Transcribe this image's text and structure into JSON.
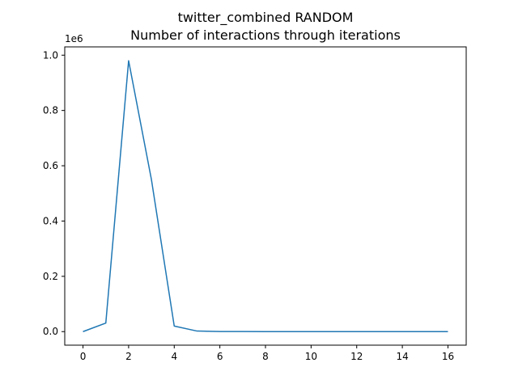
{
  "chart_data": {
    "type": "line",
    "title": "twitter_combined RANDOM",
    "subtitle": "Number of interactions through iterations",
    "xlabel": "",
    "ylabel": "",
    "y_offset_label": "1e6",
    "xlim": [
      -0.8,
      16.8
    ],
    "ylim": [
      -0.049,
      1.03
    ],
    "x_ticks": [
      0,
      2,
      4,
      6,
      8,
      10,
      12,
      14,
      16
    ],
    "x_tick_labels": [
      "0",
      "2",
      "4",
      "6",
      "8",
      "10",
      "12",
      "14",
      "16"
    ],
    "y_ticks": [
      0.0,
      0.2,
      0.4,
      0.6,
      0.8,
      1.0
    ],
    "y_tick_labels": [
      "0.0",
      "0.2",
      "0.4",
      "0.6",
      "0.8",
      "1.0"
    ],
    "grid": false,
    "series": [
      {
        "color": "#1f77b4",
        "x": [
          0,
          1,
          2,
          3,
          4,
          5,
          6,
          7,
          8,
          9,
          10,
          11,
          12,
          13,
          14,
          15,
          16
        ],
        "y": [
          0.0,
          0.031,
          0.98,
          0.55,
          0.02,
          0.002,
          0.0005,
          0.0002,
          0.0001,
          0.0001,
          0.0,
          0.0,
          0.0,
          0.0,
          0.0,
          0.0,
          0.0
        ]
      }
    ]
  }
}
